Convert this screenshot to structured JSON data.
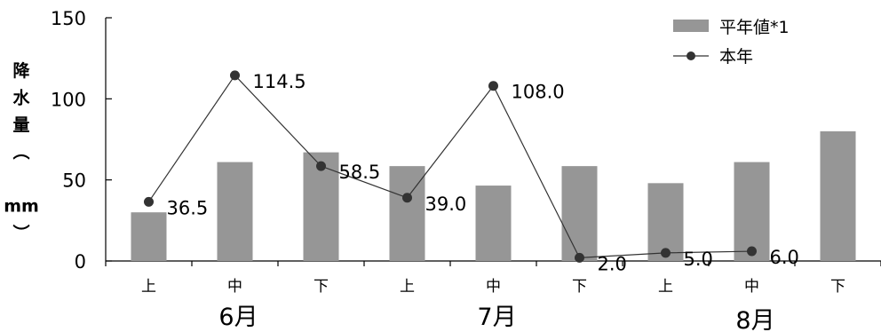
{
  "chart_data": {
    "type": "bar",
    "ylabel": "降水量（mm）",
    "ylim": [
      0,
      150
    ],
    "yticks": [
      0,
      50,
      100,
      150
    ],
    "categories": [
      "上",
      "中",
      "下",
      "上",
      "中",
      "下",
      "上",
      "中",
      "下"
    ],
    "groups": [
      {
        "label": "6月",
        "span": 3
      },
      {
        "label": "7月",
        "span": 3
      },
      {
        "label": "8月",
        "span": 3
      }
    ],
    "series": [
      {
        "name": "平年値*1",
        "type": "bar",
        "color": "#969696",
        "values": [
          30,
          61,
          67,
          58.5,
          46.5,
          58.5,
          48,
          61,
          80
        ]
      },
      {
        "name": "本年",
        "type": "line",
        "color": "#333333",
        "values": [
          36.5,
          114.5,
          58.5,
          39.0,
          108.0,
          2.0,
          5.0,
          6.0,
          null
        ],
        "data_labels": [
          "36.5",
          "114.5",
          "58.5",
          "39.0",
          "108.0",
          "2.0",
          "5.0",
          "6.0"
        ]
      }
    ],
    "legend": {
      "position": "top-right"
    },
    "grid": false
  }
}
